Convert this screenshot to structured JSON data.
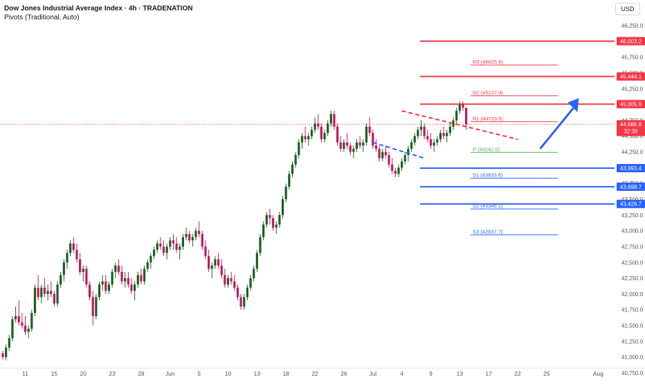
{
  "header": {
    "title": "Dow Jones Industrial Average Index · 4h · TRADENATION",
    "indicator": "Pivots (Traditional, Auto)",
    "currency": "USD"
  },
  "colors": {
    "up": "#26a69a",
    "up_body": "#1b5e20",
    "down": "#c2185b",
    "resistance": "#f23645",
    "support": "#2962ff",
    "pivot_p": "#4caf50",
    "text": "#131722"
  },
  "chart_data": {
    "type": "candlestick",
    "yaxis": {
      "min": 40750,
      "max": 46250,
      "ticks": [
        "46,250.0",
        "46,000.0",
        "45,750.0",
        "45,500.0",
        "45,250.0",
        "45,000.0",
        "44,750.0",
        "44,500.0",
        "44,250.0",
        "44,000.0",
        "43,750.0",
        "43,500.0",
        "43,250.0",
        "43,000.0",
        "42,750.0",
        "42,500.0",
        "42,250.0",
        "42,000.0",
        "41,750.0",
        "41,500.0",
        "41,250.0",
        "41,000.0",
        "40,750.0"
      ]
    },
    "xaxis": {
      "ticks": [
        {
          "label": "11",
          "i": 7
        },
        {
          "label": "15",
          "i": 16
        },
        {
          "label": "20",
          "i": 25
        },
        {
          "label": "23",
          "i": 34
        },
        {
          "label": "28",
          "i": 43
        },
        {
          "label": "Jun",
          "i": 52
        },
        {
          "label": "5",
          "i": 61
        },
        {
          "label": "10",
          "i": 70
        },
        {
          "label": "13",
          "i": 79
        },
        {
          "label": "18",
          "i": 88
        },
        {
          "label": "22",
          "i": 97
        },
        {
          "label": "26",
          "i": 106
        },
        {
          "label": "Jul",
          "i": 115
        },
        {
          "label": "4",
          "i": 124
        },
        {
          "label": "9",
          "i": 133
        },
        {
          "label": "13",
          "i": 142
        },
        {
          "label": "17",
          "i": 151
        },
        {
          "label": "22",
          "i": 160
        },
        {
          "label": "25",
          "i": 169
        },
        {
          "label": "Aug",
          "i": 185
        }
      ]
    },
    "candles": [
      [
        41060,
        41100,
        40960,
        41000
      ],
      [
        41000,
        41200,
        40950,
        41150
      ],
      [
        41150,
        41350,
        41100,
        41300
      ],
      [
        41300,
        41650,
        41250,
        41600
      ],
      [
        41600,
        41800,
        41550,
        41650
      ],
      [
        41650,
        41900,
        41500,
        41550
      ],
      [
        41550,
        41700,
        41450,
        41500
      ],
      [
        41500,
        41650,
        41350,
        41400
      ],
      [
        41400,
        41500,
        41300,
        41450
      ],
      [
        41450,
        41750,
        41400,
        41700
      ],
      [
        41700,
        42150,
        41650,
        42100
      ],
      [
        42100,
        42300,
        41900,
        41950
      ],
      [
        41950,
        42150,
        41850,
        42100
      ],
      [
        42100,
        42250,
        41950,
        42000
      ],
      [
        42000,
        42150,
        41900,
        42050
      ],
      [
        42050,
        42200,
        41950,
        42000
      ],
      [
        42000,
        42050,
        41800,
        41850
      ],
      [
        41850,
        42200,
        41800,
        42150
      ],
      [
        42150,
        42350,
        42100,
        42300
      ],
      [
        42300,
        42550,
        42200,
        42500
      ],
      [
        42500,
        42700,
        42400,
        42650
      ],
      [
        42650,
        42850,
        42600,
        42800
      ],
      [
        42800,
        42900,
        42650,
        42700
      ],
      [
        42700,
        42800,
        42500,
        42550
      ],
      [
        42550,
        42650,
        42300,
        42350
      ],
      [
        42350,
        42450,
        42200,
        42400
      ],
      [
        42400,
        42450,
        42100,
        42150
      ],
      [
        42150,
        42200,
        41900,
        41950
      ],
      [
        41950,
        42050,
        41500,
        41650
      ],
      [
        41650,
        42000,
        41600,
        41950
      ],
      [
        41950,
        42200,
        41900,
        42150
      ],
      [
        42150,
        42300,
        42050,
        42200
      ],
      [
        42200,
        42300,
        42000,
        42050
      ],
      [
        42050,
        42200,
        42000,
        42150
      ],
      [
        42150,
        42400,
        42100,
        42350
      ],
      [
        42350,
        42500,
        42250,
        42450
      ],
      [
        42450,
        42550,
        42300,
        42350
      ],
      [
        42350,
        42450,
        42150,
        42200
      ],
      [
        42200,
        42350,
        42100,
        42250
      ],
      [
        42250,
        42350,
        42100,
        42150
      ],
      [
        42150,
        42250,
        42000,
        42050
      ],
      [
        42050,
        42200,
        41900,
        42150
      ],
      [
        42150,
        42350,
        42100,
        42300
      ],
      [
        42300,
        42400,
        42150,
        42200
      ],
      [
        42200,
        42450,
        42150,
        42400
      ],
      [
        42400,
        42550,
        42350,
        42500
      ],
      [
        42500,
        42650,
        42400,
        42600
      ],
      [
        42600,
        42750,
        42550,
        42700
      ],
      [
        42700,
        42850,
        42650,
        42800
      ],
      [
        42800,
        42900,
        42700,
        42750
      ],
      [
        42750,
        42850,
        42600,
        42650
      ],
      [
        42650,
        42800,
        42550,
        42750
      ],
      [
        42750,
        42900,
        42700,
        42850
      ],
      [
        42850,
        42950,
        42700,
        42800
      ],
      [
        42800,
        42900,
        42650,
        42700
      ],
      [
        42700,
        42800,
        42550,
        42750
      ],
      [
        42750,
        42950,
        42700,
        42900
      ],
      [
        42900,
        43050,
        42850,
        42950
      ],
      [
        42950,
        43000,
        42800,
        42850
      ],
      [
        42850,
        42950,
        42750,
        42900
      ],
      [
        42900,
        43050,
        42850,
        43000
      ],
      [
        43000,
        43150,
        42900,
        42950
      ],
      [
        42950,
        43000,
        42700,
        42750
      ],
      [
        42750,
        42850,
        42550,
        42600
      ],
      [
        42600,
        42700,
        42350,
        42400
      ],
      [
        42400,
        42500,
        42250,
        42450
      ],
      [
        42450,
        42600,
        42400,
        42550
      ],
      [
        42550,
        42650,
        42400,
        42450
      ],
      [
        42450,
        42550,
        42250,
        42300
      ],
      [
        42300,
        42400,
        42100,
        42150
      ],
      [
        42150,
        42300,
        42100,
        42250
      ],
      [
        42250,
        42350,
        42150,
        42200
      ],
      [
        42200,
        42300,
        42050,
        42100
      ],
      [
        42100,
        42150,
        41900,
        41950
      ],
      [
        41950,
        42000,
        41750,
        41800
      ],
      [
        41800,
        42000,
        41750,
        41950
      ],
      [
        41950,
        42150,
        41900,
        42100
      ],
      [
        42100,
        42300,
        42050,
        42250
      ],
      [
        42250,
        42450,
        42200,
        42400
      ],
      [
        42400,
        42700,
        42350,
        42650
      ],
      [
        42650,
        42950,
        42600,
        42900
      ],
      [
        42900,
        43150,
        42850,
        43100
      ],
      [
        43100,
        43300,
        43050,
        43250
      ],
      [
        43250,
        43350,
        43100,
        43200
      ],
      [
        43200,
        43250,
        43000,
        43050
      ],
      [
        43050,
        43150,
        42950,
        43100
      ],
      [
        43100,
        43300,
        43050,
        43250
      ],
      [
        43250,
        43550,
        43200,
        43500
      ],
      [
        43500,
        43750,
        43450,
        43700
      ],
      [
        43700,
        43950,
        43650,
        43900
      ],
      [
        43900,
        44100,
        43850,
        44050
      ],
      [
        44050,
        44250,
        44000,
        44200
      ],
      [
        44200,
        44450,
        44150,
        44400
      ],
      [
        44400,
        44550,
        44300,
        44500
      ],
      [
        44500,
        44650,
        44400,
        44450
      ],
      [
        44450,
        44550,
        44350,
        44500
      ],
      [
        44500,
        44650,
        44450,
        44600
      ],
      [
        44600,
        44800,
        44550,
        44700
      ],
      [
        44700,
        44850,
        44600,
        44650
      ],
      [
        44650,
        44700,
        44400,
        44450
      ],
      [
        44450,
        44600,
        44400,
        44550
      ],
      [
        44550,
        44750,
        44500,
        44700
      ],
      [
        44700,
        44900,
        44650,
        44850
      ],
      [
        44850,
        44900,
        44600,
        44650
      ],
      [
        44650,
        44700,
        44350,
        44400
      ],
      [
        44400,
        44500,
        44250,
        44300
      ],
      [
        44300,
        44450,
        44250,
        44400
      ],
      [
        44400,
        44550,
        44300,
        44350
      ],
      [
        44350,
        44400,
        44200,
        44250
      ],
      [
        44250,
        44350,
        44150,
        44300
      ],
      [
        44300,
        44450,
        44250,
        44400
      ],
      [
        44400,
        44500,
        44300,
        44350
      ],
      [
        44350,
        44450,
        44250,
        44400
      ],
      [
        44400,
        44700,
        44350,
        44650
      ],
      [
        44650,
        44800,
        44500,
        44550
      ],
      [
        44550,
        44600,
        44300,
        44350
      ],
      [
        44350,
        44450,
        44250,
        44300
      ],
      [
        44300,
        44350,
        44100,
        44150
      ],
      [
        44150,
        44300,
        44100,
        44250
      ],
      [
        44250,
        44350,
        44150,
        44200
      ],
      [
        44200,
        44250,
        44000,
        44050
      ],
      [
        44050,
        44150,
        43900,
        43950
      ],
      [
        43950,
        44000,
        43850,
        43900
      ],
      [
        43900,
        44050,
        43850,
        44000
      ],
      [
        44000,
        44150,
        43950,
        44100
      ],
      [
        44100,
        44250,
        44050,
        44200
      ],
      [
        44200,
        44350,
        44100,
        44300
      ],
      [
        44300,
        44450,
        44250,
        44400
      ],
      [
        44400,
        44550,
        44350,
        44500
      ],
      [
        44500,
        44650,
        44450,
        44600
      ],
      [
        44600,
        44750,
        44500,
        44650
      ],
      [
        44650,
        44700,
        44450,
        44500
      ],
      [
        44500,
        44600,
        44400,
        44450
      ],
      [
        44450,
        44550,
        44300,
        44350
      ],
      [
        44350,
        44450,
        44250,
        44400
      ],
      [
        44400,
        44500,
        44350,
        44450
      ],
      [
        44450,
        44600,
        44400,
        44550
      ],
      [
        44550,
        44650,
        44450,
        44500
      ],
      [
        44500,
        44600,
        44400,
        44550
      ],
      [
        44550,
        44700,
        44500,
        44650
      ],
      [
        44650,
        44800,
        44600,
        44750
      ],
      [
        44750,
        44950,
        44700,
        44900
      ],
      [
        44900,
        45050,
        44850,
        45000
      ],
      [
        45000,
        45050,
        44900,
        44950
      ],
      [
        44950,
        44950,
        44600,
        44687
      ]
    ],
    "levels": [
      {
        "label": "46,003.2",
        "value": 46003.2,
        "kind": "resistance",
        "axis_tag": true
      },
      {
        "label": "45,444.1",
        "value": 45444.1,
        "kind": "resistance",
        "axis_tag": true
      },
      {
        "label": "45,005.9",
        "value": 45005.9,
        "kind": "resistance",
        "axis_tag": true
      },
      {
        "label": "43,993.4",
        "value": 43993.4,
        "kind": "support",
        "axis_tag": true
      },
      {
        "label": "43,698.7",
        "value": 43698.7,
        "kind": "support",
        "axis_tag": true
      },
      {
        "label": "43,426.7",
        "value": 43426.7,
        "kind": "support",
        "axis_tag": true
      }
    ],
    "pivots": [
      {
        "label": "R3 (45625.4)",
        "value": 45625.4,
        "kind": "resistance"
      },
      {
        "label": "R2 (45137.9)",
        "value": 45137.9,
        "kind": "resistance"
      },
      {
        "label": "R1 (44729.5)",
        "value": 44729.5,
        "kind": "resistance"
      },
      {
        "label": "P (44242.0)",
        "value": 44242.0,
        "kind": "pivot"
      },
      {
        "label": "S1 (43833.6)",
        "value": 43833.6,
        "kind": "support"
      },
      {
        "label": "S2 (43346.1)",
        "value": 43346.1,
        "kind": "support"
      },
      {
        "label": "S3 (42937.7)",
        "value": 42937.7,
        "kind": "support"
      }
    ],
    "current_price": {
      "label": "44,686.8",
      "countdown": "32:30",
      "value": 44686.8
    },
    "trendlines": [
      {
        "kind": "resistance",
        "from": [
          124,
          44900
        ],
        "to": [
          160,
          44450
        ]
      },
      {
        "kind": "support",
        "from": [
          115,
          44400
        ],
        "to": [
          131,
          44150
        ]
      }
    ],
    "arrow": {
      "from": [
        167,
        44300
      ],
      "to": [
        179,
        45100
      ]
    }
  }
}
